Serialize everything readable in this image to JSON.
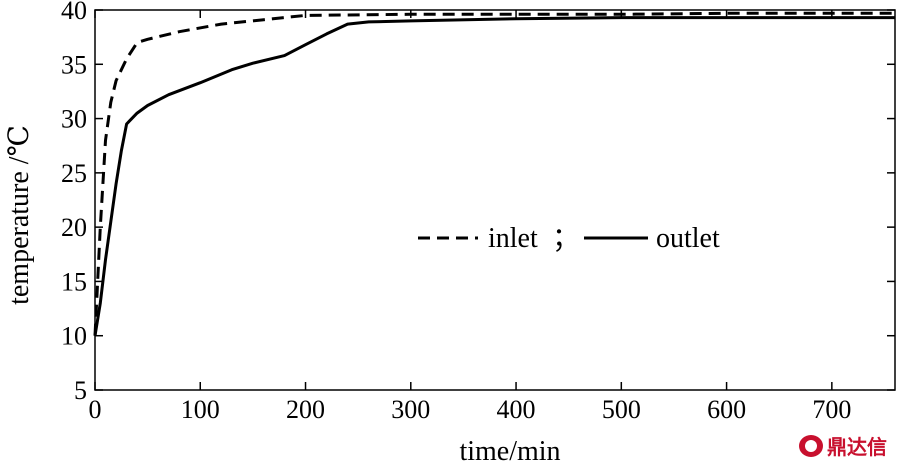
{
  "chart_data": {
    "type": "line",
    "title": "",
    "xlabel": "time/min",
    "ylabel": "temperature /℃",
    "xlim": [
      0,
      760
    ],
    "ylim": [
      5,
      40
    ],
    "xticks": [
      0,
      100,
      200,
      300,
      400,
      500,
      600,
      700
    ],
    "yticks": [
      5,
      10,
      15,
      20,
      25,
      30,
      35,
      40
    ],
    "grid": false,
    "legend_position": "center-right",
    "legend_separator": "；",
    "series": [
      {
        "name": "inlet",
        "style": "dashed",
        "color": "#000000",
        "x": [
          0,
          5,
          10,
          15,
          20,
          30,
          40,
          50,
          80,
          120,
          200,
          300,
          400,
          500,
          600,
          700,
          760
        ],
        "y": [
          10,
          20,
          28,
          31.5,
          33.5,
          35.5,
          37,
          37.3,
          38,
          38.7,
          39.5,
          39.6,
          39.6,
          39.6,
          39.7,
          39.7,
          39.7
        ]
      },
      {
        "name": "outlet",
        "style": "solid",
        "color": "#000000",
        "x": [
          0,
          5,
          10,
          15,
          20,
          25,
          30,
          40,
          50,
          70,
          100,
          130,
          150,
          180,
          200,
          220,
          240,
          260,
          300,
          400,
          500,
          600,
          700,
          760
        ],
        "y": [
          10,
          13,
          17,
          20.5,
          24,
          27,
          29.5,
          30.5,
          31.2,
          32.2,
          33.3,
          34.5,
          35.1,
          35.8,
          36.8,
          37.8,
          38.7,
          38.9,
          39,
          39.2,
          39.3,
          39.3,
          39.3,
          39.3
        ]
      }
    ]
  },
  "watermark": {
    "text": "鼎达信",
    "color": "#c8102e"
  }
}
